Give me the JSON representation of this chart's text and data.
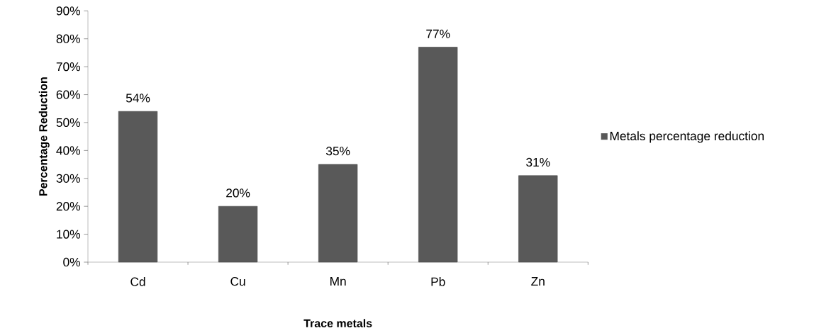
{
  "chart_data": {
    "type": "bar",
    "xlabel": "Trace metals",
    "ylabel": "Percentage Reduction",
    "categories": [
      "Cd",
      "Cu",
      "Mn",
      "Pb",
      "Zn"
    ],
    "series": [
      {
        "name": "Metals percentage reduction",
        "color": "#595959",
        "values": [
          54,
          20,
          35,
          77,
          31
        ],
        "value_labels": [
          "54%",
          "20%",
          "35%",
          "77%",
          "31%"
        ]
      }
    ],
    "ylim": [
      0,
      90
    ],
    "yticks": [
      {
        "value": 0,
        "label": "0%"
      },
      {
        "value": 10,
        "label": "10%"
      },
      {
        "value": 20,
        "label": "20%"
      },
      {
        "value": 30,
        "label": "30%"
      },
      {
        "value": 40,
        "label": "40%"
      },
      {
        "value": 50,
        "label": "50%"
      },
      {
        "value": 60,
        "label": "60%"
      },
      {
        "value": 70,
        "label": "70%"
      },
      {
        "value": 80,
        "label": "80%"
      },
      {
        "value": 90,
        "label": "90%"
      }
    ],
    "grid": false,
    "legend": "right"
  }
}
